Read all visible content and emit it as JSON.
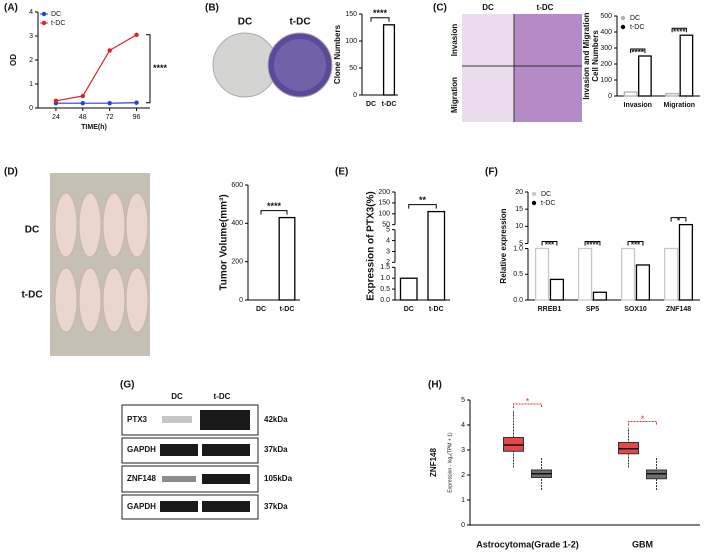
{
  "chart_data": [
    {
      "type": "line",
      "panel": "(A)",
      "x_label": "TIME(h)",
      "y_label": "OD",
      "x": [
        24,
        48,
        72,
        96
      ],
      "xlim": [
        8,
        108
      ],
      "xticks": [
        24,
        48,
        72,
        96
      ],
      "series": [
        {
          "name": "DC",
          "color": "#2b3fd6",
          "values": [
            0.2,
            0.2,
            0.2,
            0.22
          ]
        },
        {
          "name": "t-DC",
          "color": "#e02020",
          "values": [
            0.3,
            0.5,
            2.4,
            3.05
          ]
        }
      ],
      "ylim": [
        0,
        4
      ],
      "yticks": [
        0,
        1,
        2,
        3,
        4
      ],
      "legend": "top-left",
      "significance": "****"
    },
    {
      "type": "bar",
      "panel": "(B)",
      "y_label": "Clone Numbers",
      "categories": [
        "DC",
        "t-DC"
      ],
      "series": [
        {
          "color": "#000000",
          "values": [
            0,
            130
          ]
        }
      ],
      "ylim": [
        0,
        150
      ],
      "yticks": [
        0,
        50,
        100,
        150
      ],
      "significance": [
        "****"
      ]
    },
    {
      "type": "bar",
      "panel": "(C)",
      "y_label": [
        "Invasion and Migration",
        "Cell Numbers"
      ],
      "categories": [
        "Invasion",
        "Migration"
      ],
      "series": [
        {
          "name": "DC",
          "color": "#b0b0b0",
          "values": [
            25,
            15
          ]
        },
        {
          "name": "t-DC",
          "color": "#000000",
          "values": [
            250,
            380
          ]
        }
      ],
      "ylim": [
        0,
        500
      ],
      "yticks": [
        0,
        100,
        200,
        300,
        400,
        500
      ],
      "legend": "top-left",
      "significance": [
        "****",
        "****"
      ]
    },
    {
      "type": "bar",
      "panel": "(D)",
      "y_label": "Tumor Volume(mm³)",
      "categories": [
        "DC",
        "t-DC"
      ],
      "series": [
        {
          "color": "#000000",
          "values": [
            0,
            430
          ]
        }
      ],
      "ylim": [
        0,
        600
      ],
      "yticks": [
        0,
        200,
        400,
        600
      ],
      "significance": [
        "****"
      ]
    },
    {
      "type": "bar",
      "panel": "(E)",
      "y_label": "Expression of PTX3(%)",
      "categories": [
        "DC",
        "t-DC"
      ],
      "series": [
        {
          "color": "#000000",
          "values": [
            1,
            110
          ]
        }
      ],
      "ylim_segments": [
        [
          0,
          1.5
        ],
        [
          2,
          5
        ],
        [
          50,
          200
        ]
      ],
      "yticks": [
        {
          "value": 0,
          "label": "0.0"
        },
        {
          "value": 0.5,
          "label": "0.5"
        },
        {
          "value": 1,
          "label": "1.0"
        },
        {
          "value": 1.5,
          "label": "1.5"
        },
        2,
        3,
        4,
        5,
        50,
        100,
        150,
        200
      ],
      "significance": [
        "**"
      ]
    },
    {
      "type": "bar",
      "panel": "(F)",
      "y_label": "Relative expression",
      "categories": [
        "RREB1",
        "SP5",
        "SOX10",
        "ZNF148"
      ],
      "series": [
        {
          "name": "DC",
          "color": "#c8c8c8",
          "values": [
            1,
            1,
            1,
            1
          ]
        },
        {
          "name": "t-DC",
          "color": "#000000",
          "values": [
            0.4,
            0.15,
            0.68,
            10.5
          ]
        }
      ],
      "ylim_segments": [
        [
          0,
          1
        ],
        [
          5,
          20
        ]
      ],
      "yticks": [
        {
          "value": 0,
          "label": "0.0"
        },
        {
          "value": 0.5,
          "label": "0.5"
        },
        {
          "value": 1,
          "label": "1.0"
        },
        5,
        10,
        15,
        20
      ],
      "legend": "top-left",
      "significance": [
        "***",
        "****",
        "***",
        "*"
      ]
    },
    {
      "type": "boxplot",
      "panel": "(H)",
      "y_label": "ZNF148",
      "y_sublabel": "Expression - log₂(TPM + 1)",
      "categories": [
        "Astrocytoma(Grade 1-2)",
        "GBM"
      ],
      "series": [
        {
          "color": "#e8474a",
          "boxes": [
            [
              2.3,
              2.95,
              3.2,
              3.5,
              4.6
            ],
            [
              2.3,
              2.85,
              3.05,
              3.3,
              3.9
            ]
          ]
        },
        {
          "color": "#6e6e6e",
          "boxes": [
            [
              1.4,
              1.9,
              2.05,
              2.2,
              2.7
            ],
            [
              1.4,
              1.85,
              2.05,
              2.2,
              2.7
            ]
          ]
        }
      ],
      "ylim": [
        0,
        5
      ],
      "yticks": [
        0,
        1,
        2,
        3,
        4,
        5
      ],
      "significance": [
        "*",
        "*"
      ]
    }
  ],
  "photos": {
    "B": {
      "columns": [
        "DC",
        "t-DC"
      ]
    },
    "C": {
      "columns": [
        "DC",
        "t-DC"
      ],
      "rows": [
        "Invasion",
        "Migration"
      ]
    },
    "D": {
      "rows": [
        "DC",
        "t-DC"
      ]
    }
  },
  "blot": {
    "panel": "(G)",
    "columns": [
      "DC",
      "t-DC"
    ],
    "rows": [
      {
        "protein": "PTX3",
        "size": "42kDa"
      },
      {
        "protein": "GAPDH",
        "size": "37kDa"
      },
      {
        "protein": "ZNF148",
        "size": "105kDa"
      },
      {
        "protein": "GAPDH",
        "size": "37kDa"
      }
    ]
  }
}
